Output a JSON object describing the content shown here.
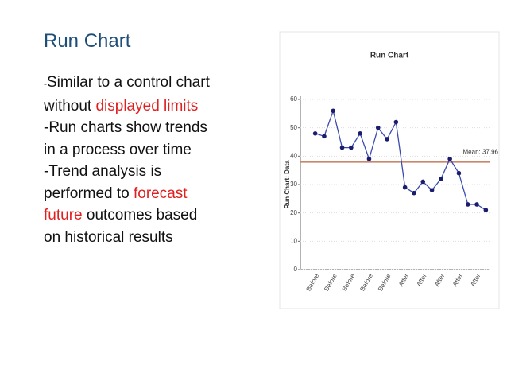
{
  "slide": {
    "title": "Run Chart",
    "lines": [
      [
        {
          "text": "-",
          "size": "small"
        },
        {
          "text": "Similar to a control chart"
        }
      ],
      [
        {
          "text": "without "
        },
        {
          "text": "displayed limits",
          "color": "#e02020"
        }
      ],
      [
        {
          "text": "-Run charts show trends"
        }
      ],
      [
        {
          "text": "in a process over time"
        }
      ],
      [
        {
          "text": "-Trend analysis is"
        }
      ],
      [
        {
          "text": "performed to "
        },
        {
          "text": "forecast",
          "color": "#e02020"
        }
      ],
      [
        {
          "text": "future",
          "color": "#e02020"
        },
        {
          "text": " outcomes based"
        }
      ],
      [
        {
          "text": "on historical results"
        }
      ]
    ]
  },
  "chart_data": {
    "type": "line",
    "title": "Run Chart",
    "y_label": "Run Chart: Data",
    "categories": [
      "Before",
      null,
      "Before",
      null,
      "Before",
      null,
      "Before",
      null,
      "Before",
      null,
      "After",
      null,
      "After",
      null,
      "After",
      null,
      "After",
      null,
      "After",
      null
    ],
    "series": [
      {
        "color": "#3a4bb0",
        "marker_color": "#1c1c6e",
        "values": [
          48,
          47,
          56,
          43,
          43,
          48,
          39,
          50,
          46,
          52,
          29,
          27,
          31,
          28,
          32,
          39,
          34,
          23,
          23,
          21
        ]
      }
    ],
    "mean": 37.96,
    "mean_label": "Mean: 37.96",
    "mean_color": "#c8876a",
    "ylim": [
      0,
      60
    ],
    "yticks": [
      0,
      10,
      20,
      30,
      40,
      50,
      60
    ],
    "grid": true
  }
}
